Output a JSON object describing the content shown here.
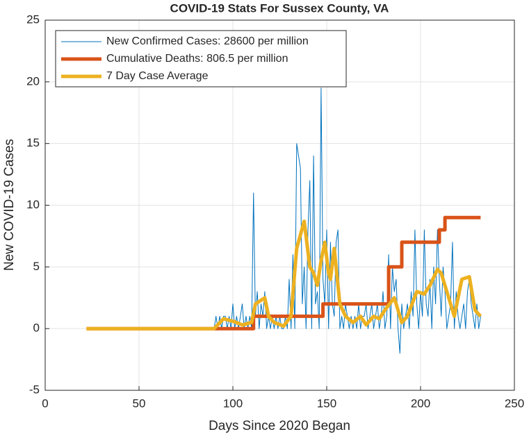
{
  "chart_data": {
    "type": "line",
    "title": "COVID-19 Stats For Sussex County, VA",
    "xlabel": "Days Since 2020 Began",
    "ylabel": "New COVID-19 Cases",
    "xlim": [
      0,
      250
    ],
    "xticks": [
      0,
      50,
      100,
      150,
      200,
      250
    ],
    "ylim": [
      -5,
      25
    ],
    "yticks": [
      -5,
      0,
      5,
      10,
      15,
      20,
      25
    ],
    "grid": true,
    "legend": "upper-left",
    "series": [
      {
        "name": "New Confirmed Cases: 28600 per million",
        "color": "#0072bd",
        "width": 1,
        "x": [
          90,
          91,
          92,
          93,
          94,
          95,
          96,
          97,
          98,
          99,
          100,
          101,
          102,
          103,
          104,
          105,
          106,
          107,
          108,
          109,
          110,
          111,
          112,
          113,
          114,
          115,
          116,
          117,
          118,
          119,
          120,
          121,
          122,
          123,
          124,
          125,
          126,
          127,
          128,
          129,
          130,
          131,
          132,
          133,
          134,
          135,
          136,
          137,
          138,
          139,
          140,
          141,
          142,
          143,
          144,
          145,
          146,
          147,
          148,
          149,
          150,
          151,
          152,
          153,
          154,
          155,
          156,
          157,
          158,
          159,
          160,
          161,
          162,
          163,
          164,
          165,
          166,
          167,
          168,
          169,
          170,
          171,
          172,
          173,
          174,
          175,
          176,
          177,
          178,
          179,
          180,
          181,
          182,
          183,
          184,
          185,
          186,
          187,
          188,
          189,
          190,
          191,
          192,
          193,
          194,
          195,
          196,
          197,
          198,
          199,
          200,
          201,
          202,
          203,
          204,
          205,
          206,
          207,
          208,
          209,
          210,
          211,
          212,
          213,
          214,
          215,
          216,
          217,
          218,
          219,
          220,
          221,
          222,
          223,
          224,
          225,
          226,
          227,
          228,
          229,
          230,
          231,
          232
        ],
        "values": [
          0,
          1,
          0,
          1,
          0,
          1,
          1,
          0,
          1,
          0,
          2,
          0,
          1,
          0,
          1,
          2,
          0,
          1,
          0,
          1,
          0,
          11,
          1,
          3,
          0,
          2,
          1,
          3,
          0,
          1,
          0,
          1,
          0,
          1,
          0,
          1,
          0,
          0,
          1,
          0,
          4,
          0,
          6,
          0,
          15,
          14,
          13,
          2,
          5,
          0,
          8,
          12,
          0,
          14,
          2,
          3,
          0,
          19.5,
          4,
          2,
          8,
          0,
          7,
          2,
          1,
          7,
          8,
          0,
          1,
          0,
          2,
          1,
          0,
          1,
          0,
          1,
          0,
          2,
          0,
          1,
          1,
          2,
          0,
          1,
          2,
          0,
          1,
          2,
          0,
          1,
          3,
          0,
          1,
          6,
          0,
          5,
          3,
          4,
          0,
          -2,
          2,
          0,
          1,
          2,
          0,
          3,
          1,
          8,
          2,
          0,
          3,
          1,
          8,
          2,
          1,
          4,
          0,
          5,
          2,
          8,
          4,
          1,
          5,
          3,
          0,
          1,
          2,
          7,
          0,
          3,
          1,
          0,
          1,
          2,
          0,
          3,
          4,
          2,
          1,
          0,
          2,
          0,
          1
        ]
      },
      {
        "name": "Cumulative Deaths: 806.5 per million",
        "color": "#d95319",
        "width": 5,
        "x": [
          22,
          111,
          111,
          148,
          148,
          183,
          183,
          190,
          190,
          210,
          210,
          213,
          213,
          232
        ],
        "values": [
          0,
          0,
          1,
          1,
          2,
          2,
          5,
          5,
          7,
          7,
          8,
          8,
          9,
          9
        ]
      },
      {
        "name": "7 Day Case Average",
        "color": "#edb120",
        "width": 5,
        "x": [
          22,
          90,
          95,
          100,
          105,
          110,
          112,
          117,
          119,
          122,
          127,
          131,
          134,
          138,
          141,
          143,
          145,
          147,
          149,
          151,
          152,
          154,
          157,
          160,
          164,
          168,
          171,
          175,
          178,
          181,
          186,
          190,
          193,
          198,
          202,
          205,
          209,
          211,
          214,
          218,
          222,
          226,
          229,
          232
        ],
        "values": [
          0,
          0,
          0.8,
          0.6,
          0.3,
          0.5,
          2,
          2.5,
          1,
          0.5,
          0.2,
          1,
          6.5,
          8.7,
          5,
          4.5,
          3.5,
          5.5,
          7,
          4.5,
          4,
          6.5,
          2,
          1,
          0.5,
          1,
          0.3,
          1,
          0.8,
          1.5,
          2.5,
          0.5,
          1,
          3,
          2.8,
          3.5,
          4.8,
          4.5,
          3,
          1,
          4,
          4.2,
          1.5,
          1
        ]
      }
    ]
  }
}
